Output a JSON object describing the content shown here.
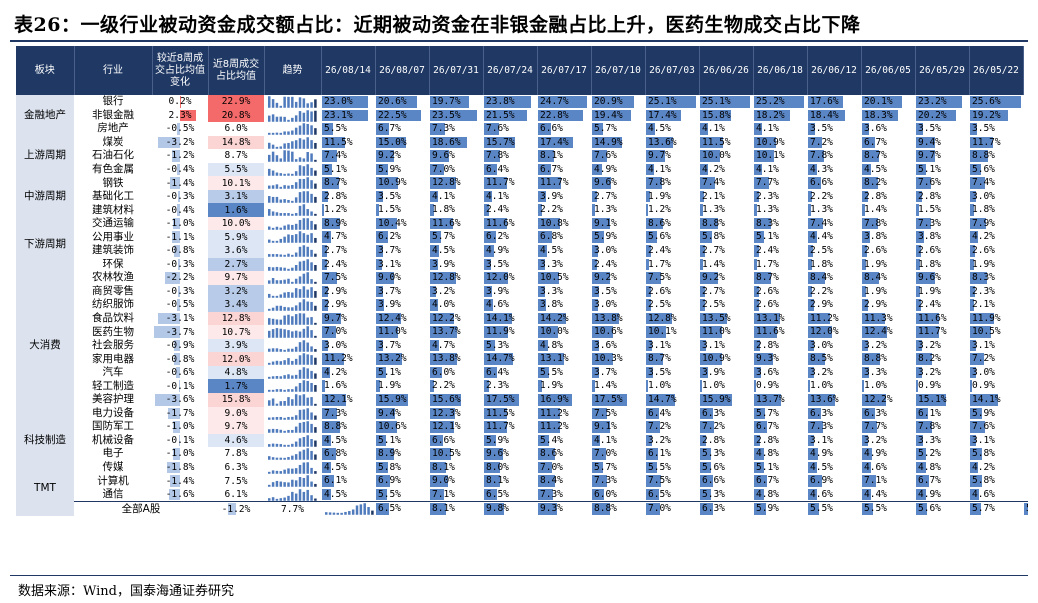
{
  "title": "表26：一级行业被动资金成交额占比：近期被动资金在非银金融占比上升，医药生物成交占比下降",
  "source": "数据来源：Wind，国泰海通证券研究",
  "headers": {
    "sector": "板块",
    "industry": "行业",
    "change": "较近8周成交占比均值变化",
    "avg": "近8周成交占比均值",
    "trend": "趋势",
    "dates": [
      "26/08/14",
      "26/08/07",
      "26/07/31",
      "26/07/24",
      "26/07/17",
      "26/07/10",
      "26/07/03",
      "26/06/26",
      "26/06/18",
      "26/06/12",
      "26/06/05",
      "26/05/29",
      "26/05/22"
    ]
  },
  "colors": {
    "header_bg": "#1f3864",
    "sector_bg": "#dce3ef",
    "share_bar": "#5b86c5",
    "avg_red": "#f46a6a",
    "avg_pink": "#fbd4d4",
    "avg_blue_dark": "#5b86c5",
    "avg_blue_light": "#dce6f5",
    "change_pos_bar": "#f46a6a",
    "change_neg_bar": "#b3c7e6"
  },
  "sectors": [
    {
      "name": "金融地产",
      "span": 3
    },
    {
      "name": "上游周期",
      "span": 3
    },
    {
      "name": "中游周期",
      "span": 3
    },
    {
      "name": "下游周期",
      "span": 4
    },
    {
      "name": "大消费",
      "span": 11
    },
    {
      "name": "科技制造",
      "span": 3
    },
    {
      "name": "TMT",
      "span": 4
    }
  ],
  "rows": [
    {
      "industry": "银行",
      "change": "0.2%",
      "avg": "22.9%",
      "vals": [
        "23.0%",
        "20.6%",
        "19.7%",
        "23.8%",
        "24.7%",
        "20.9%",
        "25.1%",
        "25.1%",
        "25.2%",
        "17.6%",
        "20.1%",
        "23.2%",
        "25.6%"
      ]
    },
    {
      "industry": "非银金融",
      "change": "2.3%",
      "avg": "20.8%",
      "vals": [
        "23.1%",
        "22.5%",
        "23.5%",
        "21.5%",
        "22.8%",
        "19.4%",
        "17.4%",
        "15.8%",
        "18.2%",
        "18.4%",
        "18.3%",
        "20.2%",
        "19.2%"
      ]
    },
    {
      "industry": "房地产",
      "change": "-0.5%",
      "avg": "6.0%",
      "vals": [
        "5.5%",
        "6.7%",
        "7.3%",
        "7.6%",
        "6.6%",
        "5.7%",
        "4.5%",
        "4.1%",
        "4.1%",
        "3.5%",
        "3.6%",
        "3.5%",
        "3.5%"
      ]
    },
    {
      "industry": "煤炭",
      "change": "-3.2%",
      "avg": "14.8%",
      "vals": [
        "11.5%",
        "15.0%",
        "18.6%",
        "15.7%",
        "17.4%",
        "14.9%",
        "13.6%",
        "11.5%",
        "10.9%",
        "7.2%",
        "6.7%",
        "9.4%",
        "11.7%"
      ]
    },
    {
      "industry": "石油石化",
      "change": "-1.2%",
      "avg": "8.7%",
      "vals": [
        "7.4%",
        "9.2%",
        "9.6%",
        "7.8%",
        "8.1%",
        "7.6%",
        "9.7%",
        "10.0%",
        "10.1%",
        "7.8%",
        "8.7%",
        "9.7%",
        "8.8%"
      ]
    },
    {
      "industry": "有色金属",
      "change": "-0.4%",
      "avg": "5.5%",
      "vals": [
        "5.1%",
        "5.9%",
        "7.0%",
        "6.4%",
        "6.7%",
        "4.9%",
        "4.1%",
        "4.2%",
        "4.1%",
        "4.3%",
        "4.5%",
        "5.1%",
        "5.6%"
      ]
    },
    {
      "industry": "钢铁",
      "change": "-1.4%",
      "avg": "10.1%",
      "vals": [
        "8.7%",
        "10.9%",
        "12.8%",
        "11.7%",
        "11.7%",
        "9.6%",
        "7.8%",
        "7.4%",
        "7.7%",
        "6.6%",
        "8.2%",
        "7.6%",
        "7.4%"
      ]
    },
    {
      "industry": "基础化工",
      "change": "-0.3%",
      "avg": "3.1%",
      "vals": [
        "2.8%",
        "3.5%",
        "4.1%",
        "4.1%",
        "3.9%",
        "2.7%",
        "1.9%",
        "2.1%",
        "2.3%",
        "2.2%",
        "2.8%",
        "2.8%",
        "3.0%"
      ]
    },
    {
      "industry": "建筑材料",
      "change": "-0.4%",
      "avg": "1.6%",
      "vals": [
        "1.2%",
        "1.5%",
        "1.8%",
        "2.4%",
        "2.2%",
        "1.3%",
        "1.2%",
        "1.3%",
        "1.3%",
        "1.3%",
        "1.4%",
        "1.5%",
        "1.8%"
      ]
    },
    {
      "industry": "交通运输",
      "change": "-1.0%",
      "avg": "10.0%",
      "vals": [
        "8.9%",
        "10.4%",
        "11.6%",
        "11.6%",
        "10.8%",
        "9.1%",
        "8.6%",
        "8.8%",
        "8.3%",
        "7.4%",
        "7.8%",
        "7.3%",
        "7.9%"
      ]
    },
    {
      "industry": "公用事业",
      "change": "-1.1%",
      "avg": "5.9%",
      "vals": [
        "4.7%",
        "6.2%",
        "5.7%",
        "6.2%",
        "6.8%",
        "5.9%",
        "5.6%",
        "5.8%",
        "5.1%",
        "4.4%",
        "3.8%",
        "3.8%",
        "4.2%"
      ]
    },
    {
      "industry": "建筑装饰",
      "change": "-0.8%",
      "avg": "3.6%",
      "vals": [
        "2.7%",
        "3.7%",
        "4.5%",
        "4.9%",
        "4.5%",
        "3.0%",
        "2.4%",
        "2.7%",
        "2.4%",
        "2.5%",
        "2.6%",
        "2.6%",
        "2.6%"
      ]
    },
    {
      "industry": "环保",
      "change": "-0.3%",
      "avg": "2.7%",
      "vals": [
        "2.4%",
        "3.1%",
        "3.9%",
        "3.5%",
        "3.3%",
        "2.4%",
        "1.7%",
        "1.4%",
        "1.7%",
        "1.8%",
        "1.9%",
        "1.8%",
        "1.9%"
      ]
    },
    {
      "industry": "农林牧渔",
      "change": "-2.2%",
      "avg": "9.7%",
      "vals": [
        "7.5%",
        "9.0%",
        "12.8%",
        "12.0%",
        "10.5%",
        "9.2%",
        "7.5%",
        "9.2%",
        "8.7%",
        "8.4%",
        "8.4%",
        "9.6%",
        "8.3%"
      ]
    },
    {
      "industry": "商贸零售",
      "change": "-0.3%",
      "avg": "3.2%",
      "vals": [
        "2.9%",
        "3.7%",
        "3.2%",
        "3.9%",
        "3.3%",
        "3.5%",
        "2.6%",
        "2.7%",
        "2.6%",
        "2.2%",
        "1.9%",
        "1.9%",
        "2.3%"
      ]
    },
    {
      "industry": "纺织服饰",
      "change": "-0.5%",
      "avg": "3.4%",
      "vals": [
        "2.9%",
        "3.9%",
        "4.0%",
        "4.6%",
        "3.8%",
        "3.0%",
        "2.5%",
        "2.5%",
        "2.6%",
        "2.9%",
        "2.9%",
        "2.4%",
        "2.1%"
      ]
    },
    {
      "industry": "食品饮料",
      "change": "-3.1%",
      "avg": "12.8%",
      "vals": [
        "9.7%",
        "12.4%",
        "12.2%",
        "14.1%",
        "14.2%",
        "13.8%",
        "12.8%",
        "13.5%",
        "13.1%",
        "11.2%",
        "11.3%",
        "11.6%",
        "11.9%"
      ]
    },
    {
      "industry": "医药生物",
      "change": "-3.7%",
      "avg": "10.7%",
      "vals": [
        "7.0%",
        "11.0%",
        "13.7%",
        "11.9%",
        "10.0%",
        "10.6%",
        "10.1%",
        "11.0%",
        "11.6%",
        "12.0%",
        "12.4%",
        "11.7%",
        "10.5%"
      ]
    },
    {
      "industry": "社会服务",
      "change": "-0.9%",
      "avg": "3.9%",
      "vals": [
        "3.0%",
        "3.7%",
        "4.7%",
        "5.3%",
        "4.8%",
        "3.6%",
        "3.1%",
        "3.1%",
        "2.8%",
        "3.0%",
        "3.2%",
        "3.2%",
        "3.1%"
      ]
    },
    {
      "industry": "家用电器",
      "change": "-0.8%",
      "avg": "12.0%",
      "vals": [
        "11.2%",
        "13.2%",
        "13.8%",
        "14.7%",
        "13.1%",
        "10.3%",
        "8.7%",
        "10.9%",
        "9.3%",
        "8.5%",
        "8.8%",
        "8.2%",
        "7.2%"
      ]
    },
    {
      "industry": "汽车",
      "change": "-0.6%",
      "avg": "4.8%",
      "vals": [
        "4.2%",
        "5.1%",
        "6.0%",
        "6.4%",
        "5.5%",
        "3.7%",
        "3.5%",
        "3.9%",
        "3.6%",
        "3.2%",
        "3.3%",
        "3.2%",
        "3.0%"
      ]
    },
    {
      "industry": "轻工制造",
      "change": "-0.1%",
      "avg": "1.7%",
      "vals": [
        "1.6%",
        "1.9%",
        "2.2%",
        "2.3%",
        "1.9%",
        "1.4%",
        "1.0%",
        "1.0%",
        "0.9%",
        "1.0%",
        "1.0%",
        "0.9%",
        "0.9%"
      ]
    },
    {
      "industry": "美容护理",
      "change": "-3.6%",
      "avg": "15.8%",
      "vals": [
        "12.1%",
        "15.9%",
        "15.6%",
        "17.5%",
        "16.9%",
        "17.5%",
        "14.7%",
        "15.9%",
        "13.7%",
        "13.6%",
        "12.2%",
        "15.1%",
        "14.1%"
      ]
    },
    {
      "industry": "电力设备",
      "change": "-1.7%",
      "avg": "9.0%",
      "vals": [
        "7.3%",
        "9.4%",
        "12.3%",
        "11.5%",
        "11.2%",
        "7.5%",
        "6.4%",
        "6.3%",
        "5.7%",
        "6.3%",
        "6.3%",
        "6.1%",
        "5.9%"
      ]
    },
    {
      "industry": "国防军工",
      "change": "-1.0%",
      "avg": "9.7%",
      "vals": [
        "8.8%",
        "10.6%",
        "12.1%",
        "11.7%",
        "11.2%",
        "9.1%",
        "7.2%",
        "7.2%",
        "6.7%",
        "7.3%",
        "7.7%",
        "7.8%",
        "7.6%"
      ]
    },
    {
      "industry": "机械设备",
      "change": "-0.1%",
      "avg": "4.6%",
      "vals": [
        "4.5%",
        "5.1%",
        "6.6%",
        "5.9%",
        "5.4%",
        "4.1%",
        "3.2%",
        "2.8%",
        "2.8%",
        "3.1%",
        "3.2%",
        "3.3%",
        "3.1%"
      ]
    },
    {
      "industry": "电子",
      "change": "-1.0%",
      "avg": "7.8%",
      "vals": [
        "6.8%",
        "8.9%",
        "10.5%",
        "9.6%",
        "8.6%",
        "7.0%",
        "6.1%",
        "5.3%",
        "4.8%",
        "4.9%",
        "4.9%",
        "5.2%",
        "5.8%"
      ]
    },
    {
      "industry": "传媒",
      "change": "-1.8%",
      "avg": "6.3%",
      "vals": [
        "4.5%",
        "5.8%",
        "8.1%",
        "8.0%",
        "7.0%",
        "5.7%",
        "5.5%",
        "5.6%",
        "5.1%",
        "4.5%",
        "4.6%",
        "4.8%",
        "4.2%"
      ]
    },
    {
      "industry": "计算机",
      "change": "-1.4%",
      "avg": "7.5%",
      "vals": [
        "6.1%",
        "6.9%",
        "9.0%",
        "8.1%",
        "8.4%",
        "7.3%",
        "7.5%",
        "6.6%",
        "6.7%",
        "6.9%",
        "7.1%",
        "6.7%",
        "5.8%"
      ]
    },
    {
      "industry": "通信",
      "change": "-1.6%",
      "avg": "6.1%",
      "vals": [
        "4.5%",
        "5.5%",
        "7.1%",
        "6.5%",
        "7.3%",
        "6.0%",
        "6.5%",
        "5.3%",
        "4.8%",
        "4.6%",
        "4.4%",
        "4.9%",
        "4.6%"
      ]
    },
    {
      "industry": "全部A股",
      "change": "-1.2%",
      "avg": "7.7%",
      "vals": [
        "6.5%",
        "8.1%",
        "9.8%",
        "9.3%",
        "8.8%",
        "7.0%",
        "6.3%",
        "5.9%",
        "5.5%",
        "5.5%",
        "5.6%",
        "5.7%",
        "5.8%"
      ]
    }
  ]
}
